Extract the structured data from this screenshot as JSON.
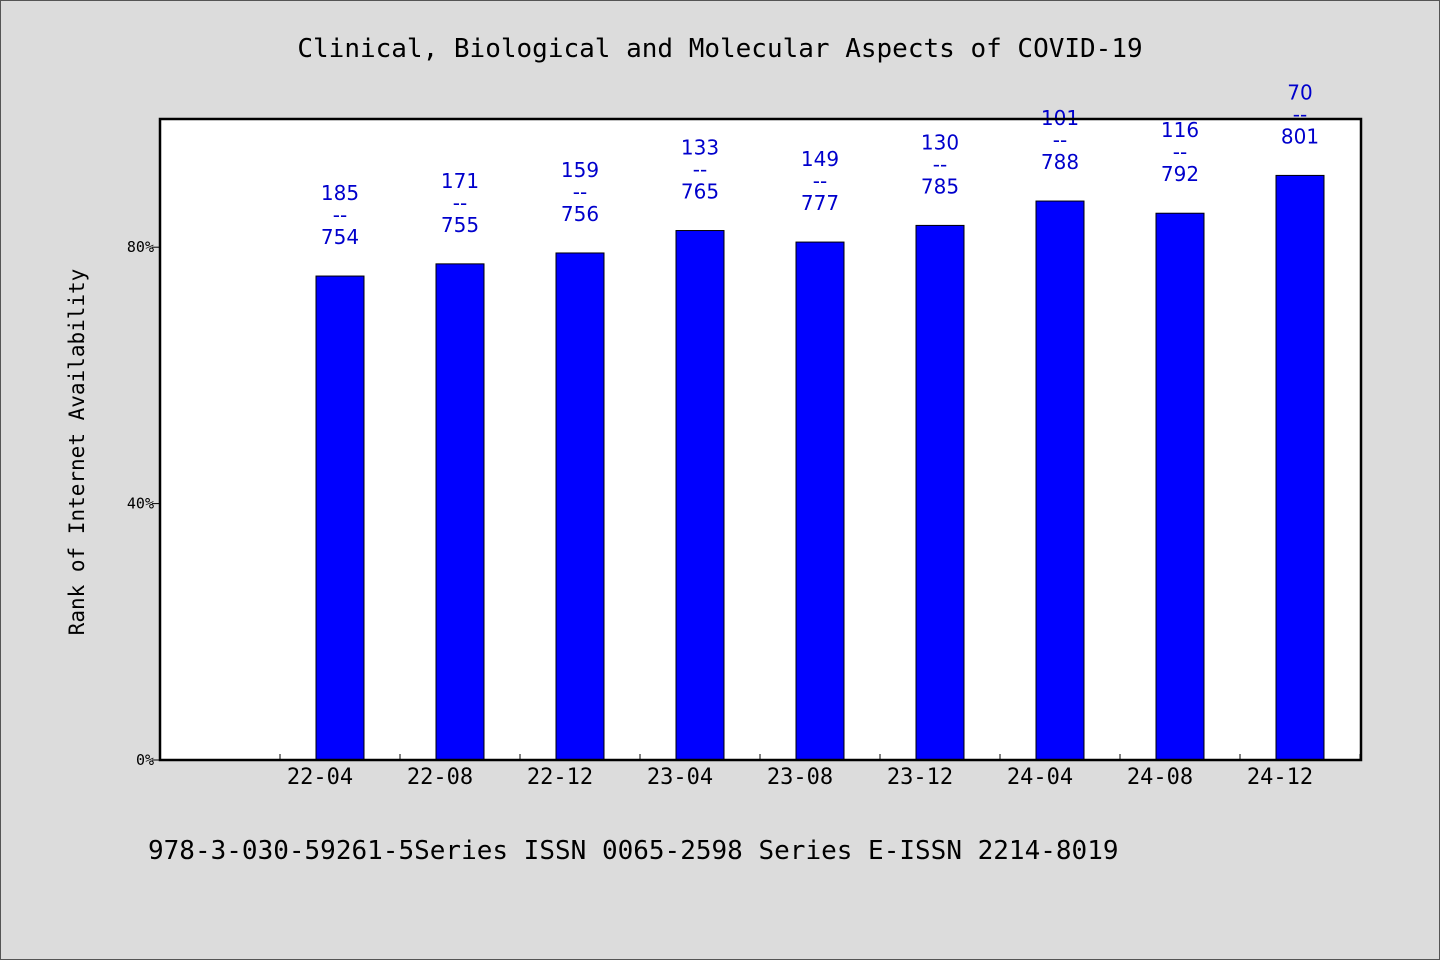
{
  "chart_data": {
    "type": "bar",
    "title": "Clinical, Biological and Molecular Aspects of COVID-19",
    "xlabel": "",
    "ylabel": "Rank of Internet Availability",
    "ylim": [
      0,
      100
    ],
    "yticks": [
      {
        "value": 0,
        "label": "0%"
      },
      {
        "value": 40,
        "label": "40%"
      },
      {
        "value": 80,
        "label": "80%"
      }
    ],
    "categories": [
      "22-04",
      "22-08",
      "22-12",
      "23-04",
      "23-08",
      "23-12",
      "24-04",
      "24-08",
      "24-12"
    ],
    "values": [
      75.5,
      77.4,
      79.1,
      82.6,
      80.8,
      83.4,
      87.2,
      85.3,
      91.2
    ],
    "labels": [
      [
        "185",
        "--",
        "754"
      ],
      [
        "171",
        "--",
        "755"
      ],
      [
        "159",
        "--",
        "756"
      ],
      [
        "133",
        "--",
        "765"
      ],
      [
        "149",
        "--",
        "777"
      ],
      [
        "130",
        "--",
        "785"
      ],
      [
        "101",
        "--",
        "788"
      ],
      [
        "116",
        "--",
        "792"
      ],
      [
        "70",
        "--",
        "801"
      ]
    ],
    "grid": false,
    "colors": {
      "bar": "#0000ff",
      "label": "#0000cc"
    }
  },
  "footer": "978-3-030-59261-5Series ISSN 0065-2598 Series E-ISSN 2214-8019"
}
